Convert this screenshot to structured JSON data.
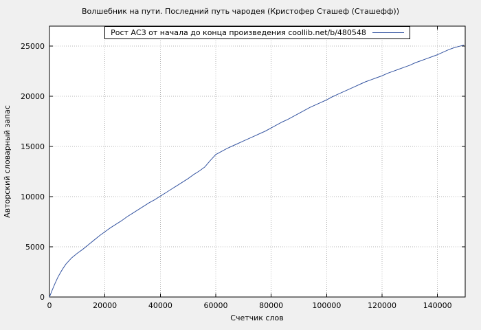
{
  "title": "Волшебник на пути. Последний путь чародея (Кристофер Сташеф (Сташефф))",
  "legend": {
    "label": "Рост АСЗ от начала до конца произведения coollib.net/b/480548"
  },
  "colors": {
    "line": "#3353a0",
    "background": "#f0f0f0",
    "plot_bg": "#ffffff",
    "grid": "#b4b4b4",
    "border": "#000000",
    "text": "#000000"
  },
  "chart_data": {
    "type": "line",
    "title": "Волшебник на пути. Последний путь чародея (Кристофер Сташеф (Сташефф))",
    "xlabel": "Счетчик слов",
    "ylabel": "Авторский словарный запас",
    "xlim": [
      0,
      150000
    ],
    "ylim": [
      0,
      27000
    ],
    "xticks": [
      0,
      20000,
      40000,
      60000,
      80000,
      100000,
      120000,
      140000
    ],
    "yticks": [
      0,
      5000,
      10000,
      15000,
      20000,
      25000
    ],
    "grid": true,
    "legend_position": "top-center",
    "series": [
      {
        "name": "Рост АСЗ от начала до конца произведения coollib.net/b/480548",
        "color": "#3353a0",
        "points": [
          [
            0,
            0
          ],
          [
            1000,
            700
          ],
          [
            2000,
            1350
          ],
          [
            3000,
            1950
          ],
          [
            4000,
            2450
          ],
          [
            5000,
            2900
          ],
          [
            6000,
            3300
          ],
          [
            8000,
            3900
          ],
          [
            10000,
            4350
          ],
          [
            12000,
            4750
          ],
          [
            14000,
            5200
          ],
          [
            16000,
            5650
          ],
          [
            18000,
            6100
          ],
          [
            20000,
            6500
          ],
          [
            22000,
            6900
          ],
          [
            24000,
            7250
          ],
          [
            26000,
            7600
          ],
          [
            28000,
            8000
          ],
          [
            30000,
            8350
          ],
          [
            32000,
            8700
          ],
          [
            34000,
            9050
          ],
          [
            36000,
            9400
          ],
          [
            38000,
            9700
          ],
          [
            40000,
            10050
          ],
          [
            42000,
            10400
          ],
          [
            44000,
            10750
          ],
          [
            46000,
            11100
          ],
          [
            48000,
            11450
          ],
          [
            50000,
            11800
          ],
          [
            52000,
            12200
          ],
          [
            54000,
            12550
          ],
          [
            56000,
            12950
          ],
          [
            58000,
            13600
          ],
          [
            60000,
            14200
          ],
          [
            62000,
            14500
          ],
          [
            64000,
            14800
          ],
          [
            66000,
            15050
          ],
          [
            68000,
            15300
          ],
          [
            70000,
            15550
          ],
          [
            72000,
            15800
          ],
          [
            74000,
            16050
          ],
          [
            76000,
            16300
          ],
          [
            78000,
            16550
          ],
          [
            80000,
            16850
          ],
          [
            82000,
            17150
          ],
          [
            84000,
            17450
          ],
          [
            86000,
            17700
          ],
          [
            88000,
            18000
          ],
          [
            90000,
            18300
          ],
          [
            92000,
            18600
          ],
          [
            94000,
            18900
          ],
          [
            96000,
            19150
          ],
          [
            98000,
            19400
          ],
          [
            100000,
            19650
          ],
          [
            102000,
            19950
          ],
          [
            104000,
            20200
          ],
          [
            106000,
            20450
          ],
          [
            108000,
            20700
          ],
          [
            110000,
            20950
          ],
          [
            112000,
            21200
          ],
          [
            114000,
            21450
          ],
          [
            116000,
            21650
          ],
          [
            118000,
            21850
          ],
          [
            120000,
            22050
          ],
          [
            122000,
            22300
          ],
          [
            124000,
            22500
          ],
          [
            126000,
            22700
          ],
          [
            128000,
            22900
          ],
          [
            130000,
            23100
          ],
          [
            132000,
            23350
          ],
          [
            134000,
            23550
          ],
          [
            136000,
            23750
          ],
          [
            138000,
            23950
          ],
          [
            140000,
            24150
          ],
          [
            142000,
            24400
          ],
          [
            144000,
            24650
          ],
          [
            146000,
            24850
          ],
          [
            148000,
            25000
          ],
          [
            149500,
            25100
          ]
        ]
      }
    ]
  }
}
